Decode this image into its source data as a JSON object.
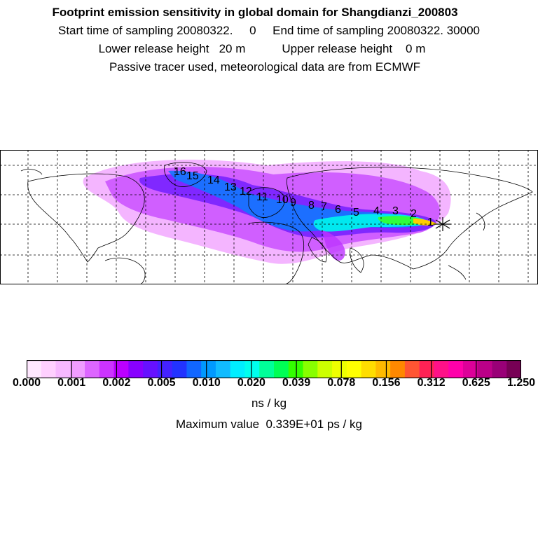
{
  "title": {
    "line1": "Footprint emission sensitivity in global domain for Shangdianzi_200803",
    "line2": "Start time of sampling 20080322.     0     End time of sampling 20080322. 30000",
    "line3": "Lower release height   20 m           Upper release height    0 m",
    "line4": "Passive tracer used, meteorological data are from ECMWF"
  },
  "map": {
    "trajectory_labels": [
      "1",
      "2",
      "3",
      "4",
      "5",
      "6",
      "7",
      "8",
      "9",
      "10",
      "11",
      "12",
      "13",
      "14",
      "15",
      "16"
    ],
    "release_marker": "star-icon",
    "grid": true,
    "plume_colors": [
      "#ff66ff",
      "#cc44ff",
      "#9922ff",
      "#5522ff",
      "#2288ff",
      "#00ddff",
      "#00ff88",
      "#66ff00",
      "#ffcc00"
    ]
  },
  "colorbar": {
    "colors": [
      "#ffe8ff",
      "#ffd0ff",
      "#f7b8ff",
      "#f09cff",
      "#dd66ff",
      "#cc33ff",
      "#bb00ff",
      "#8800ff",
      "#6611ff",
      "#4422ff",
      "#2233ff",
      "#1166ff",
      "#0099ff",
      "#11bbff",
      "#00eeff",
      "#00ffee",
      "#00ff99",
      "#00ff55",
      "#33ff00",
      "#88ff00",
      "#ccff00",
      "#eeff00",
      "#ffff00",
      "#ffdd00",
      "#ffbb00",
      "#ff8800",
      "#ff5533",
      "#ff2255",
      "#ff1188",
      "#ff00aa",
      "#dd0099",
      "#bb0088",
      "#990077",
      "#770055"
    ],
    "ticks": [
      "0.000",
      "0.001",
      "0.002",
      "0.005",
      "0.010",
      "0.020",
      "0.039",
      "0.078",
      "0.156",
      "0.312",
      "0.625",
      "1.250"
    ],
    "unit": "ns / kg",
    "max_value": "Maximum value  0.339E+01 ps / kg"
  }
}
